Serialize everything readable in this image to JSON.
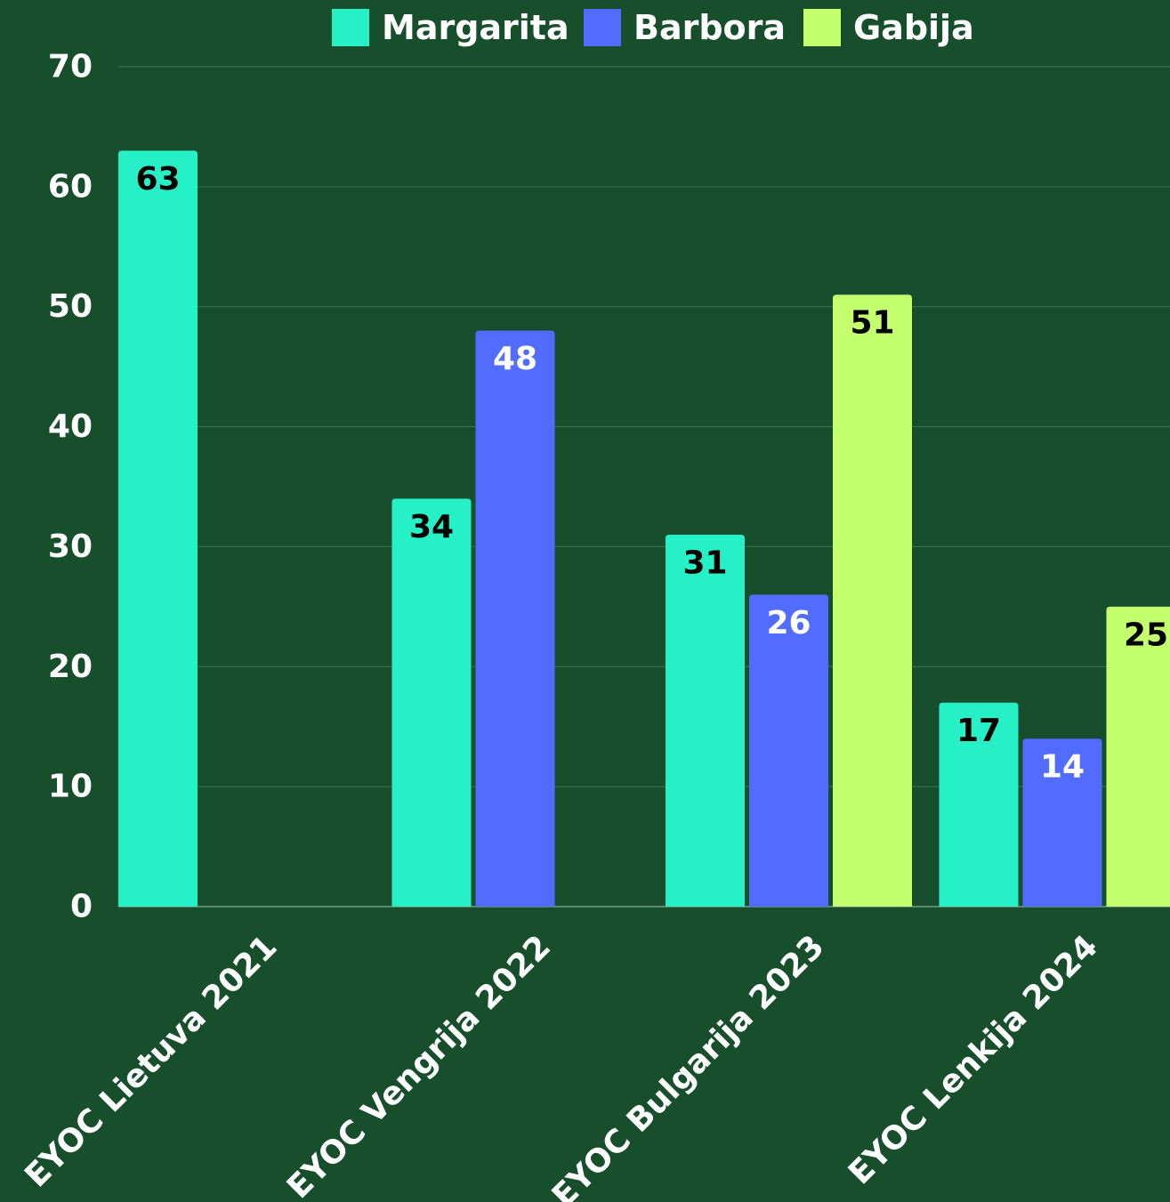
{
  "chart_data": {
    "type": "bar",
    "categories": [
      "EYOC Lietuva 2021",
      "EYOC Vengrija 2022",
      "EYOC Bulgarija 2023",
      "EYOC Lenkija 2024"
    ],
    "series": [
      {
        "name": "Margarita",
        "color": "#25f0c6",
        "label_color": "#000000",
        "values": [
          63,
          34,
          31,
          17
        ]
      },
      {
        "name": "Barbora",
        "color": "#516cff",
        "label_color": "#ffffff",
        "values": [
          null,
          48,
          26,
          14
        ]
      },
      {
        "name": "Gabija",
        "color": "#c4ff6e",
        "label_color": "#000000",
        "values": [
          null,
          null,
          51,
          25
        ]
      }
    ],
    "ylim": [
      0,
      70
    ],
    "yticks": [
      0,
      10,
      20,
      30,
      40,
      50,
      60,
      70
    ],
    "grid": true,
    "legend_position": "top-center",
    "background_color": "#174f2c",
    "gridline_color": "#3d7351"
  }
}
